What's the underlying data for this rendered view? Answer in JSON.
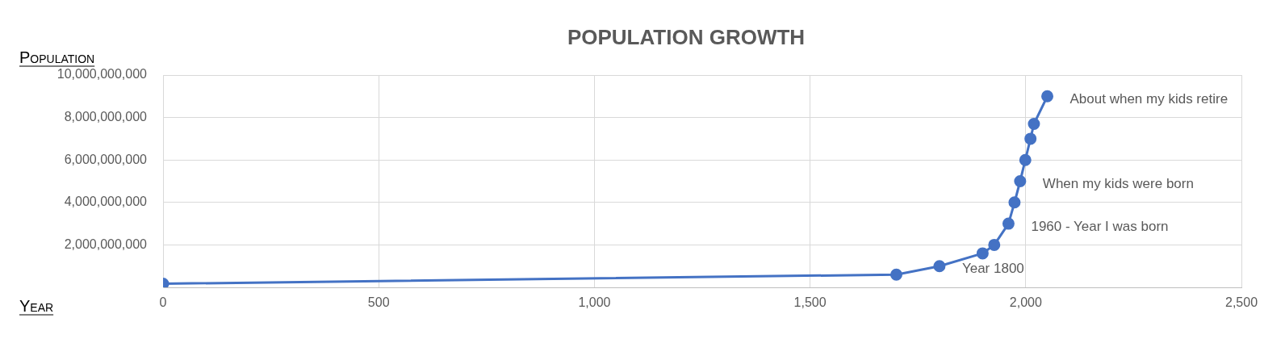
{
  "chart_data": {
    "type": "line",
    "title": "POPULATION GROWTH",
    "xlabel": "Year",
    "ylabel": "Population",
    "x": [
      0,
      1700,
      1800,
      1900,
      1927,
      1960,
      1974,
      1987,
      1999,
      2011,
      2019,
      2050
    ],
    "series": [
      {
        "color": "#4472c4",
        "values": [
          170000000,
          600000000,
          1000000000,
          1600000000,
          2000000000,
          3000000000,
          4000000000,
          5000000000,
          6000000000,
          7000000000,
          7700000000,
          9000000000
        ]
      }
    ],
    "xlim": [
      0,
      2500
    ],
    "xticks": [
      0,
      500,
      {
        "value": 1000,
        "label": "1,000"
      },
      {
        "value": 1500,
        "label": "1,500"
      },
      {
        "value": 2000,
        "label": "2,000"
      },
      {
        "value": 2500,
        "label": "2,500"
      }
    ],
    "ylim": [
      0,
      10000000000
    ],
    "yticks": [
      {
        "value": 2000000000,
        "label": "2,000,000,000"
      },
      {
        "value": 4000000000,
        "label": "4,000,000,000"
      },
      {
        "value": 6000000000,
        "label": "6,000,000,000"
      },
      {
        "value": 8000000000,
        "label": "8,000,000,000"
      },
      {
        "value": 10000000000,
        "label": "10,000,000,000"
      }
    ],
    "grid": true,
    "legend": false,
    "marker": "circle",
    "line_style": "solid",
    "annotations": [
      {
        "text": "About when my kids retire",
        "x": 2050,
        "y": 9000000000
      },
      {
        "text": "When my kids were born",
        "x": 1987,
        "y": 5000000000
      },
      {
        "text": "1960 - Year I was born",
        "x": 1960,
        "y": 3000000000
      },
      {
        "text": "Year 1800",
        "x": 1800,
        "y": 1000000000
      }
    ]
  }
}
